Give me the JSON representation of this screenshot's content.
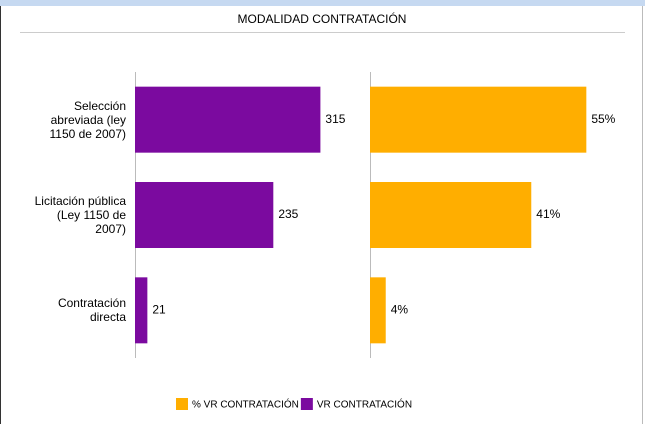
{
  "chart_data": {
    "type": "bar",
    "orientation": "horizontal",
    "title": "MODALIDAD CONTRATACIÓN",
    "categories": [
      "Selección abreviada (ley 1150 de 2007)",
      "Licitación pública (Ley 1150 de 2007)",
      "Contratación directa"
    ],
    "series": [
      {
        "name": "VR CONTRATACIÓN",
        "color": "#7b0a9f",
        "values": [
          315,
          235,
          21
        ],
        "xlim": [
          0,
          350
        ]
      },
      {
        "name": "% VR CONTRATACIÓN",
        "color": "#ffae00",
        "values": [
          55,
          41,
          4
        ],
        "value_labels": [
          "55%",
          "41%",
          "4%"
        ],
        "xlim": [
          0,
          60
        ]
      }
    ],
    "legend": "bottom"
  }
}
